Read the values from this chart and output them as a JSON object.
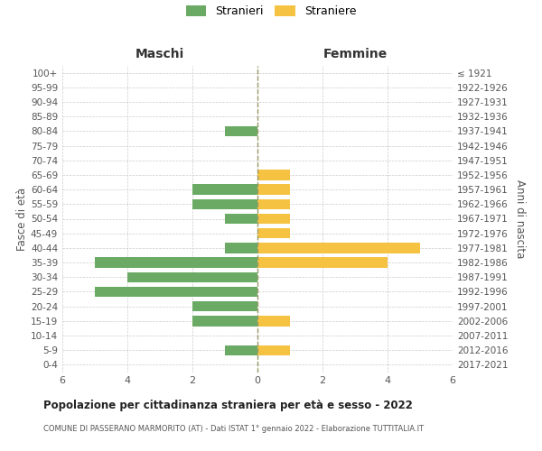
{
  "age_groups": [
    "0-4",
    "5-9",
    "10-14",
    "15-19",
    "20-24",
    "25-29",
    "30-34",
    "35-39",
    "40-44",
    "45-49",
    "50-54",
    "55-59",
    "60-64",
    "65-69",
    "70-74",
    "75-79",
    "80-84",
    "85-89",
    "90-94",
    "95-99",
    "100+"
  ],
  "birth_years": [
    "2017-2021",
    "2012-2016",
    "2007-2011",
    "2002-2006",
    "1997-2001",
    "1992-1996",
    "1987-1991",
    "1982-1986",
    "1977-1981",
    "1972-1976",
    "1967-1971",
    "1962-1966",
    "1957-1961",
    "1952-1956",
    "1947-1951",
    "1942-1946",
    "1937-1941",
    "1932-1936",
    "1927-1931",
    "1922-1926",
    "≤ 1921"
  ],
  "males": [
    0,
    1,
    0,
    2,
    2,
    5,
    4,
    5,
    1,
    0,
    1,
    2,
    2,
    0,
    0,
    0,
    1,
    0,
    0,
    0,
    0
  ],
  "females": [
    0,
    1,
    0,
    1,
    0,
    0,
    0,
    4,
    5,
    1,
    1,
    1,
    1,
    1,
    0,
    0,
    0,
    0,
    0,
    0,
    0
  ],
  "male_color": "#6aaa64",
  "female_color": "#f5c242",
  "male_label": "Stranieri",
  "female_label": "Straniere",
  "title": "Popolazione per cittadinanza straniera per età e sesso - 2022",
  "subtitle": "COMUNE DI PASSERANO MARMORITO (AT) - Dati ISTAT 1° gennaio 2022 - Elaborazione TUTTITALIA.IT",
  "left_header": "Maschi",
  "right_header": "Femmine",
  "ylabel_left": "Fasce di età",
  "ylabel_right": "Anni di nascita",
  "xlim": 6,
  "background_color": "#ffffff",
  "grid_color": "#cccccc",
  "text_color": "#555555",
  "header_color": "#333333"
}
